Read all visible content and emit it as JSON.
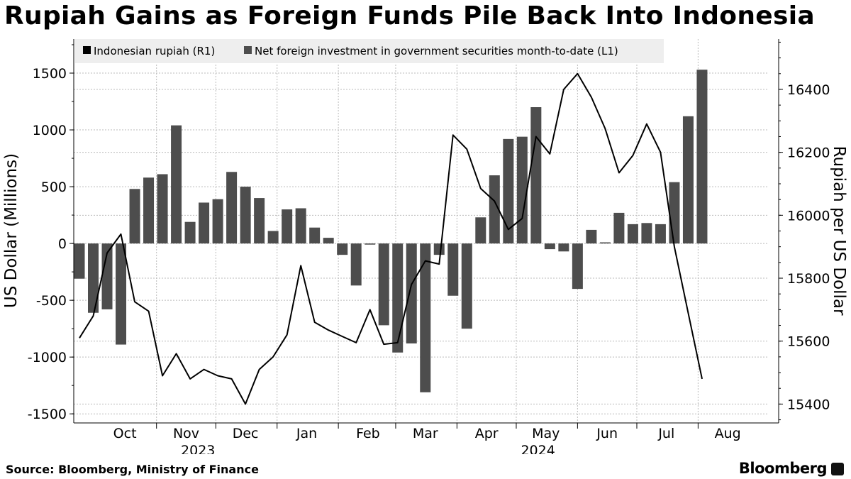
{
  "title": "Rupiah Gains as Foreign Funds Pile Back Into Indonesia",
  "source": "Source: Bloomberg, Ministry of Finance",
  "brand": "Bloomberg",
  "colors": {
    "bar": "#4d4d4d",
    "line": "#000000",
    "grid": "#bbbbbb",
    "legend_bg": "#eeeeee"
  },
  "chart_data": {
    "type": "bar+line",
    "legend": {
      "position": "top",
      "items": [
        {
          "label": "Indonesian rupiah (R1)",
          "color": "#000000"
        },
        {
          "label": "Net foreign investment in government securities month-to-date (L1)",
          "color": "#4d4d4d"
        }
      ]
    },
    "ylabel_left": "US Dollar (Millions)",
    "ylabel_right": "Rupiah per US Dollar",
    "ylim_left": [
      -1580,
      1800
    ],
    "ylim_right": [
      15340,
      16560
    ],
    "yticks_left": [
      1500,
      1000,
      500,
      0,
      -500,
      -1000,
      -1500
    ],
    "yticks_right": [
      16400,
      16200,
      16000,
      15800,
      15600,
      15400
    ],
    "x_domain": [
      "2023-09-22",
      "2024-08-30"
    ],
    "month_ticks": [
      {
        "label": "Oct",
        "date": "2023-10-15"
      },
      {
        "label": "Nov",
        "date": "2023-11-15"
      },
      {
        "label": "Dec",
        "date": "2023-12-15"
      },
      {
        "label": "Jan",
        "date": "2024-01-15"
      },
      {
        "label": "Feb",
        "date": "2024-02-15"
      },
      {
        "label": "Mar",
        "date": "2024-03-15"
      },
      {
        "label": "Apr",
        "date": "2024-04-15"
      },
      {
        "label": "May",
        "date": "2024-05-15"
      },
      {
        "label": "Jun",
        "date": "2024-06-15"
      },
      {
        "label": "Jul",
        "date": "2024-07-15"
      },
      {
        "label": "Aug",
        "date": "2024-08-15"
      }
    ],
    "year_labels": [
      {
        "label": "2023",
        "date": "2023-11-21"
      },
      {
        "label": "2024",
        "date": "2024-05-11"
      }
    ],
    "grid": true,
    "bars": {
      "name": "Net foreign investment in government securities month-to-date (L1)",
      "points": [
        [
          "2023-09-22",
          -310
        ],
        [
          "2023-09-29",
          -610
        ],
        [
          "2023-10-06",
          -580
        ],
        [
          "2023-10-13",
          -890
        ],
        [
          "2023-10-20",
          480
        ],
        [
          "2023-10-27",
          580
        ],
        [
          "2023-11-03",
          610
        ],
        [
          "2023-11-10",
          1040
        ],
        [
          "2023-11-17",
          190
        ],
        [
          "2023-11-24",
          360
        ],
        [
          "2023-12-01",
          390
        ],
        [
          "2023-12-08",
          630
        ],
        [
          "2023-12-15",
          500
        ],
        [
          "2023-12-22",
          400
        ],
        [
          "2023-12-29",
          110
        ],
        [
          "2024-01-05",
          300
        ],
        [
          "2024-01-12",
          310
        ],
        [
          "2024-01-19",
          140
        ],
        [
          "2024-01-26",
          50
        ],
        [
          "2024-02-02",
          -100
        ],
        [
          "2024-02-09",
          -370
        ],
        [
          "2024-02-16",
          -10
        ],
        [
          "2024-02-23",
          -720
        ],
        [
          "2024-03-01",
          -960
        ],
        [
          "2024-03-08",
          -880
        ],
        [
          "2024-03-15",
          -1310
        ],
        [
          "2024-03-22",
          -100
        ],
        [
          "2024-03-29",
          -460
        ],
        [
          "2024-04-05",
          -750
        ],
        [
          "2024-04-12",
          230
        ],
        [
          "2024-04-19",
          600
        ],
        [
          "2024-04-26",
          920
        ],
        [
          "2024-05-03",
          940
        ],
        [
          "2024-05-10",
          1200
        ],
        [
          "2024-05-17",
          -50
        ],
        [
          "2024-05-24",
          -70
        ],
        [
          "2024-05-31",
          -400
        ],
        [
          "2024-06-07",
          120
        ],
        [
          "2024-06-14",
          10
        ],
        [
          "2024-06-21",
          270
        ],
        [
          "2024-06-28",
          170
        ],
        [
          "2024-07-05",
          180
        ],
        [
          "2024-07-12",
          170
        ],
        [
          "2024-07-19",
          540
        ],
        [
          "2024-07-26",
          1120
        ],
        [
          "2024-08-02",
          1530
        ]
      ]
    },
    "line": {
      "name": "Indonesian rupiah (R1)",
      "points": [
        [
          "2023-09-22",
          15610
        ],
        [
          "2023-09-29",
          15680
        ],
        [
          "2023-10-06",
          15880
        ],
        [
          "2023-10-13",
          15940
        ],
        [
          "2023-10-20",
          15725
        ],
        [
          "2023-10-27",
          15695
        ],
        [
          "2023-11-03",
          15490
        ],
        [
          "2023-11-10",
          15560
        ],
        [
          "2023-11-17",
          15480
        ],
        [
          "2023-11-24",
          15510
        ],
        [
          "2023-12-01",
          15490
        ],
        [
          "2023-12-08",
          15480
        ],
        [
          "2023-12-15",
          15400
        ],
        [
          "2023-12-22",
          15510
        ],
        [
          "2023-12-29",
          15550
        ],
        [
          "2024-01-05",
          15620
        ],
        [
          "2024-01-12",
          15840
        ],
        [
          "2024-01-19",
          15660
        ],
        [
          "2024-01-26",
          15635
        ],
        [
          "2024-02-02",
          15615
        ],
        [
          "2024-02-09",
          15595
        ],
        [
          "2024-02-16",
          15700
        ],
        [
          "2024-02-23",
          15590
        ],
        [
          "2024-03-01",
          15595
        ],
        [
          "2024-03-08",
          15780
        ],
        [
          "2024-03-15",
          15855
        ],
        [
          "2024-03-22",
          15845
        ],
        [
          "2024-03-29",
          16255
        ],
        [
          "2024-04-05",
          16210
        ],
        [
          "2024-04-12",
          16085
        ],
        [
          "2024-04-19",
          16045
        ],
        [
          "2024-04-26",
          15955
        ],
        [
          "2024-05-03",
          15990
        ],
        [
          "2024-05-10",
          16250
        ],
        [
          "2024-05-17",
          16195
        ],
        [
          "2024-05-24",
          16400
        ],
        [
          "2024-05-31",
          16450
        ],
        [
          "2024-06-07",
          16375
        ],
        [
          "2024-06-14",
          16275
        ],
        [
          "2024-06-21",
          16135
        ],
        [
          "2024-06-28",
          16190
        ],
        [
          "2024-07-05",
          16290
        ],
        [
          "2024-07-12",
          16200
        ],
        [
          "2024-07-19",
          15900
        ],
        [
          "2024-07-26",
          15690
        ],
        [
          "2024-08-02",
          15480
        ]
      ]
    }
  }
}
